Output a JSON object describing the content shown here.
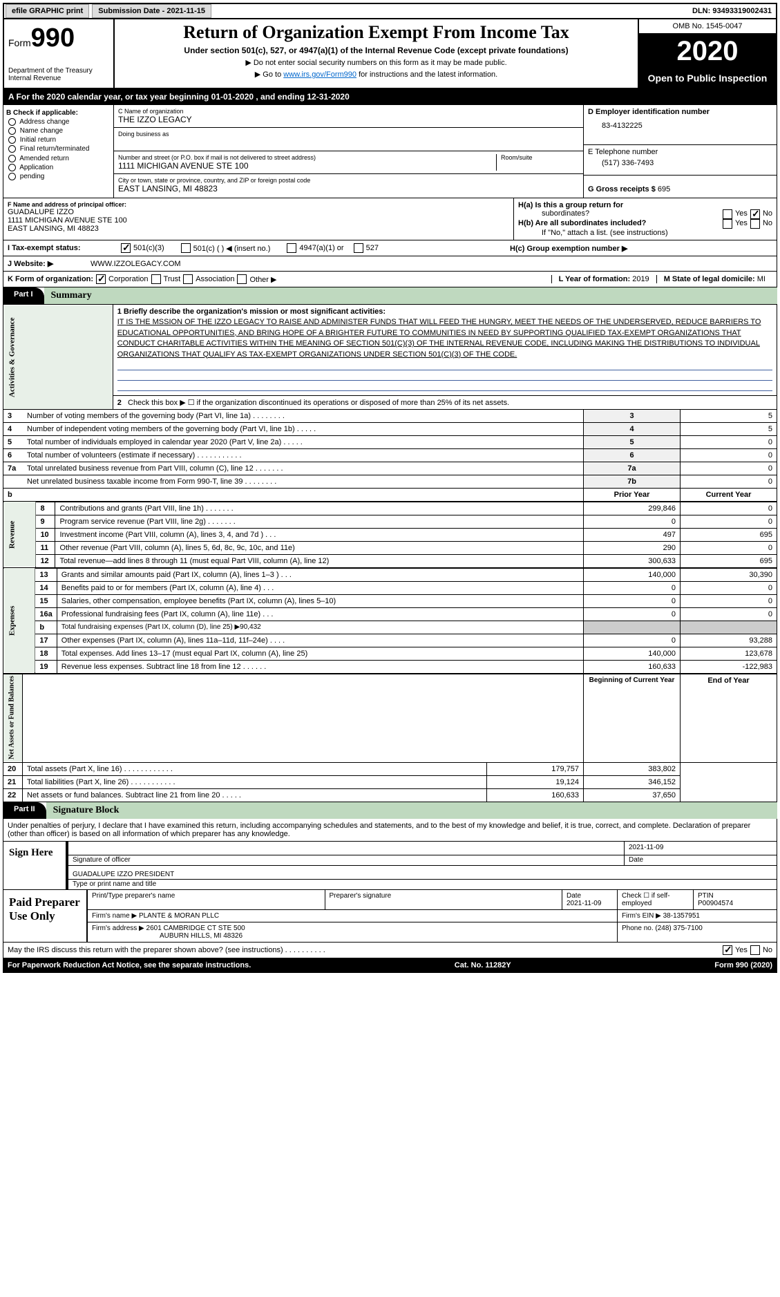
{
  "topbar": {
    "efile": "efile GRAPHIC print",
    "sub_label": "Submission Date - ",
    "sub_date": "2021-11-15",
    "dln_label": "DLN: ",
    "dln": "93493319002431"
  },
  "header": {
    "form_word": "Form",
    "form_num": "990",
    "dept": "Department of the Treasury\nInternal Revenue",
    "title": "Return of Organization Exempt From Income Tax",
    "subtitle": "Under section 501(c), 527, or 4947(a)(1) of the Internal Revenue Code (except private foundations)",
    "note1": "▶ Do not enter social security numbers on this form as it may be made public.",
    "note2a": "▶ Go to ",
    "note2_link": "www.irs.gov/Form990",
    "note2b": " for instructions and the latest information.",
    "omb": "OMB No. 1545-0047",
    "year": "2020",
    "open": "Open to Public Inspection"
  },
  "bar_a": "A For the 2020 calendar year, or tax year beginning 01-01-2020    , and ending 12-31-2020",
  "col_b": {
    "title": "B Check if applicable:",
    "items": [
      "Address change",
      "Name change",
      "Initial return",
      "Final return/terminated",
      "Amended return",
      "Application",
      "pending"
    ]
  },
  "col_c": {
    "name_lbl": "C Name of organization",
    "name": "THE IZZO LEGACY",
    "dba_lbl": "Doing business as",
    "street_lbl": "Number and street (or P.O. box if mail is not delivered to street address)",
    "room_lbl": "Room/suite",
    "street": "1111 MICHIGAN AVENUE STE 100",
    "city_lbl": "City or town, state or province, country, and ZIP or foreign postal code",
    "city": "EAST LANSING, MI  48823"
  },
  "col_d": {
    "ein_lbl": "D Employer identification number",
    "ein": "83-4132225",
    "tel_lbl": "E Telephone number",
    "tel": "(517) 336-7493",
    "gross_lbl": "G Gross receipts $ ",
    "gross": "695"
  },
  "officer": {
    "lbl": "F  Name and address of principal officer:",
    "name": "GUADALUPE IZZO",
    "addr1": "1111 MICHIGAN AVENUE STE 100",
    "addr2": "EAST LANSING, MI  48823",
    "ha": "H(a)  Is this a group return for",
    "ha2": "subordinates?",
    "hb": "H(b)  Are all subordinates included?",
    "hb_note": "If \"No,\" attach a list. (see instructions)",
    "hc": "H(c)  Group exemption number ▶",
    "yes": "Yes",
    "no": "No"
  },
  "row_i": {
    "lbl": "I    Tax-exempt status:",
    "o1": "501(c)(3)",
    "o2": "501(c) (  ) ◀ (insert no.)",
    "o3": "4947(a)(1) or",
    "o4": "527"
  },
  "row_j": {
    "lbl": "J    Website: ▶",
    "val": "WWW.IZZOLEGACY.COM"
  },
  "row_k": {
    "lbl": "K Form of organization:",
    "o1": "Corporation",
    "o2": "Trust",
    "o3": "Association",
    "o4": "Other ▶",
    "l_lbl": "L Year of formation: ",
    "l_val": "2019",
    "m_lbl": "M State of legal domicile: ",
    "m_val": "MI"
  },
  "part1": {
    "tab": "Part I",
    "title": "Summary"
  },
  "mission": {
    "lbl": "1   Briefly describe the organization's mission or most significant activities:",
    "text": "IT IS THE MSSION OF THE IZZO LEGACY TO RAISE AND ADMINISTER FUNDS THAT WILL FEED THE HUNGRY, MEET THE NEEDS OF THE UNDERSERVED, REDUCE BARRIERS TO EDUCATIONAL OPPORTUNITIES, AND BRING HOPE OF A BRIGHTER FUTURE TO COMMUNITIES IN NEED BY SUPPORTING QUALIFIED TAX-EXEMPT ORGANIZATIONS THAT CONDUCT CHARITABLE ACTIVITIES WITHIN THE MEANING OF SECTION 501(C)(3) OF THE INTERNAL REVENUE CODE, INCLUDING MAKING THE DISTRIBUTIONS TO INDIVIDUAL ORGANIZATIONS THAT QUALIFY AS TAX-EXEMPT ORGANIZATIONS UNDER SECTION 501(C)(3) OF THE CODE."
  },
  "line2": "Check this box ▶ ☐  if the organization discontinued its operations or disposed of more than 25% of its net assets.",
  "sides": {
    "gov": "Activities & Governance",
    "rev": "Revenue",
    "exp": "Expenses",
    "net": "Net Assets or\nFund Balances"
  },
  "gov_rows": [
    {
      "n": "3",
      "t": "Number of voting members of the governing body (Part VI, line 1a)   .   .   .   .   .   .   .   .",
      "k": "3",
      "v": "5"
    },
    {
      "n": "4",
      "t": "Number of independent voting members of the governing body (Part VI, line 1b)   .   .   .   .   .",
      "k": "4",
      "v": "5"
    },
    {
      "n": "5",
      "t": "Total number of individuals employed in calendar year 2020 (Part V, line 2a)   .   .   .   .   .",
      "k": "5",
      "v": "0"
    },
    {
      "n": "6",
      "t": "Total number of volunteers (estimate if necessary)   .   .   .   .   .   .   .   .   .   .   .",
      "k": "6",
      "v": "0"
    },
    {
      "n": "7a",
      "t": "Total unrelated business revenue from Part VIII, column (C), line 12   .   .   .   .   .   .   .",
      "k": "7a",
      "v": "0"
    },
    {
      "n": "",
      "t": "Net unrelated business taxable income from Form 990-T, line 39   .   .   .   .   .   .   .   .",
      "k": "7b",
      "v": "0"
    }
  ],
  "col_hdrs": {
    "prior": "Prior Year",
    "current": "Current Year",
    "boy": "Beginning of Current Year",
    "eoy": "End of Year"
  },
  "rev_rows": [
    {
      "n": "8",
      "t": "Contributions and grants (Part VIII, line 1h)   .   .   .   .   .   .   .",
      "p": "299,846",
      "c": "0"
    },
    {
      "n": "9",
      "t": "Program service revenue (Part VIII, line 2g)   .   .   .   .   .   .   .",
      "p": "0",
      "c": "0"
    },
    {
      "n": "10",
      "t": "Investment income (Part VIII, column (A), lines 3, 4, and 7d )   .   .   .",
      "p": "497",
      "c": "695"
    },
    {
      "n": "11",
      "t": "Other revenue (Part VIII, column (A), lines 5, 6d, 8c, 9c, 10c, and 11e)",
      "p": "290",
      "c": "0"
    },
    {
      "n": "12",
      "t": "Total revenue—add lines 8 through 11 (must equal Part VIII, column (A), line 12)",
      "p": "300,633",
      "c": "695"
    }
  ],
  "exp_rows": [
    {
      "n": "13",
      "t": "Grants and similar amounts paid (Part IX, column (A), lines 1–3 )   .   .   .",
      "p": "140,000",
      "c": "30,390"
    },
    {
      "n": "14",
      "t": "Benefits paid to or for members (Part IX, column (A), line 4)   .   .   .",
      "p": "0",
      "c": "0"
    },
    {
      "n": "15",
      "t": "Salaries, other compensation, employee benefits (Part IX, column (A), lines 5–10)",
      "p": "0",
      "c": "0"
    },
    {
      "n": "16a",
      "t": "Professional fundraising fees (Part IX, column (A), line 11e)   .   .   .",
      "p": "0",
      "c": "0"
    },
    {
      "n": "b",
      "t": "Total fundraising expenses (Part IX, column (D), line 25) ▶90,432",
      "p": "",
      "c": "",
      "gray": true
    },
    {
      "n": "17",
      "t": "Other expenses (Part IX, column (A), lines 11a–11d, 11f–24e)   .   .   .   .",
      "p": "0",
      "c": "93,288"
    },
    {
      "n": "18",
      "t": "Total expenses. Add lines 13–17 (must equal Part IX, column (A), line 25)",
      "p": "140,000",
      "c": "123,678"
    },
    {
      "n": "19",
      "t": "Revenue less expenses. Subtract line 18 from line 12   .   .   .   .   .   .",
      "p": "160,633",
      "c": "-122,983"
    }
  ],
  "net_rows": [
    {
      "n": "20",
      "t": "Total assets (Part X, line 16)   .   .   .   .   .   .   .   .   .   .   .   .",
      "p": "179,757",
      "c": "383,802"
    },
    {
      "n": "21",
      "t": "Total liabilities (Part X, line 26)   .   .   .   .   .   .   .   .   .   .   .",
      "p": "19,124",
      "c": "346,152"
    },
    {
      "n": "22",
      "t": "Net assets or fund balances. Subtract line 21 from line 20   .   .   .   .   .",
      "p": "160,633",
      "c": "37,650"
    }
  ],
  "part2": {
    "tab": "Part II",
    "title": "Signature Block"
  },
  "sig_decl": "Under penalties of perjury, I declare that I have examined this return, including accompanying schedules and statements, and to the best of my knowledge and belief, it is true, correct, and complete. Declaration of preparer (other than officer) is based on all information of which preparer has any knowledge.",
  "sign": {
    "here": "Sign Here",
    "officer": "Signature of officer",
    "date": "2021-11-09",
    "date_lbl": "Date",
    "name": "GUADALUPE IZZO  PRESIDENT",
    "name_lbl": "Type or print name and title"
  },
  "prep": {
    "title": "Paid Preparer Use Only",
    "h1": "Print/Type preparer's name",
    "h2": "Preparer's signature",
    "h3": "Date",
    "h3v": "2021-11-09",
    "h4": "Check ☐ if self-employed",
    "h5": "PTIN",
    "h5v": "P00904574",
    "firm_lbl": "Firm's name     ▶ ",
    "firm": "PLANTE & MORAN PLLC",
    "ein_lbl": "Firm's EIN ▶ ",
    "ein": "38-1357951",
    "addr_lbl": "Firm's address ▶ ",
    "addr1": "2601 CAMBRIDGE CT STE 500",
    "addr2": "AUBURN HILLS, MI  48326",
    "phone_lbl": "Phone no. ",
    "phone": "(248) 375-7100"
  },
  "discuss": {
    "text": "May the IRS discuss this return with the preparer shown above? (see instructions)   .   .   .   .   .   .   .   .   .   .",
    "yes": "Yes",
    "no": "No"
  },
  "footer": {
    "left": "For Paperwork Reduction Act Notice, see the separate instructions.",
    "mid": "Cat. No. 11282Y",
    "right": "Form 990 (2020)"
  }
}
